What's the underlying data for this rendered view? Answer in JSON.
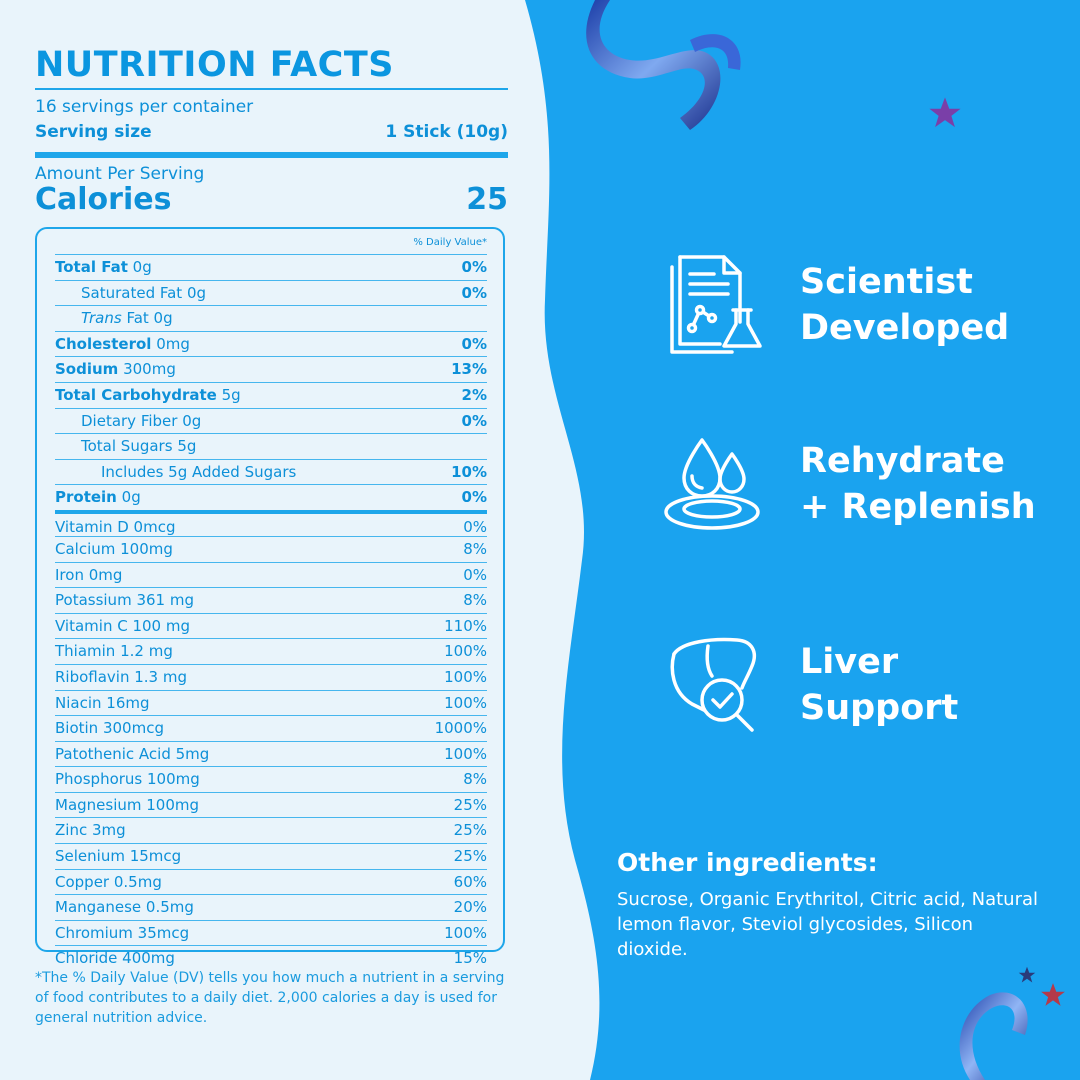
{
  "header": {
    "title": "NUTRITION FACTS",
    "servings": "16 servings per container",
    "serving_size_label": "Serving size",
    "serving_size_value": "1 Stick (10g)",
    "amount_per_serving": "Amount Per Serving",
    "calories_label": "Calories",
    "calories_value": "25"
  },
  "table": {
    "dv_header": "% Daily Value*",
    "rows": [
      {
        "label": "Total Fat",
        "amount": "0g",
        "pct": "0%"
      },
      {
        "label": "Saturated Fat",
        "amount": "0g",
        "pct": "0%"
      },
      {
        "label": "Trans",
        "amount": "Fat 0g",
        "pct": ""
      },
      {
        "label": "Cholesterol",
        "amount": "0mg",
        "pct": "0%"
      },
      {
        "label": "Sodium",
        "amount": "300mg",
        "pct": "13%"
      },
      {
        "label": "Total Carbohydrate",
        "amount": "5g",
        "pct": "2%"
      },
      {
        "label": "Dietary Fiber",
        "amount": "0g",
        "pct": "0%"
      },
      {
        "label": "Total Sugars",
        "amount": "5g",
        "pct": ""
      },
      {
        "label": "Includes 5g Added Sugars",
        "amount": "",
        "pct": "10%"
      },
      {
        "label": "Protein",
        "amount": "0g",
        "pct": "0%"
      }
    ],
    "vitamins": [
      {
        "label": "Vitamin D 0mcg",
        "pct": "0%"
      },
      {
        "label": "Calcium 100mg",
        "pct": "8%"
      },
      {
        "label": "Iron 0mg",
        "pct": "0%"
      },
      {
        "label": "Potassium 361 mg",
        "pct": "8%"
      },
      {
        "label": "Vitamin C 100 mg",
        "pct": "110%"
      },
      {
        "label": "Thiamin 1.2 mg",
        "pct": "100%"
      },
      {
        "label": "Riboflavin 1.3 mg",
        "pct": "100%"
      },
      {
        "label": "Niacin 16mg",
        "pct": "100%"
      },
      {
        "label": "Biotin 300mcg",
        "pct": "1000%"
      },
      {
        "label": "Patothenic Acid 5mg",
        "pct": "100%"
      },
      {
        "label": "Phosphorus 100mg",
        "pct": "8%"
      },
      {
        "label": "Magnesium 100mg",
        "pct": "25%"
      },
      {
        "label": "Zinc 3mg",
        "pct": "25%"
      },
      {
        "label": "Selenium 15mcg",
        "pct": "25%"
      },
      {
        "label": "Copper 0.5mg",
        "pct": "60%"
      },
      {
        "label": "Manganese 0.5mg",
        "pct": "20%"
      },
      {
        "label": "Chromium 35mcg",
        "pct": "100%"
      },
      {
        "label": "Chloride 400mg",
        "pct": "15%"
      }
    ]
  },
  "footnote": "*The % Daily Value (DV) tells you how much a nutrient in a serving of food contributes to a daily diet. 2,000 calories a day is used for general nutrition advice.",
  "features": [
    {
      "line1": "Scientist",
      "line2": "Developed",
      "icon": "lab-document-icon"
    },
    {
      "line1": "Rehydrate",
      "line2": "+ Replenish",
      "icon": "water-drops-icon"
    },
    {
      "line1": "Liver",
      "line2": "Support",
      "icon": "liver-check-icon"
    }
  ],
  "other": {
    "heading": "Other ingredients:",
    "text": "Sucrose, Organic Erythritol, Citric acid, Natural lemon flavor, Steviol glycosides, Silicon dioxide."
  },
  "colors": {
    "accent": "#0b96e0",
    "panel_bg": "#e9f4fb",
    "blue_bg": "#1aa3ef"
  }
}
